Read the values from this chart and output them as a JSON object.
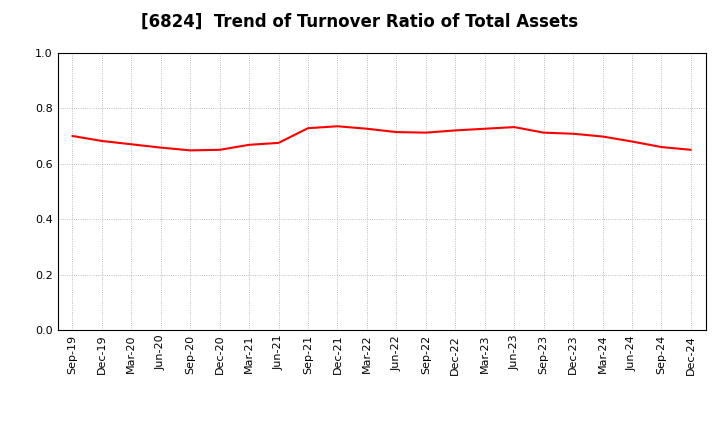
{
  "title": "[6824]  Trend of Turnover Ratio of Total Assets",
  "x_labels": [
    "Sep-19",
    "Dec-19",
    "Mar-20",
    "Jun-20",
    "Sep-20",
    "Dec-20",
    "Mar-21",
    "Jun-21",
    "Sep-21",
    "Dec-21",
    "Mar-22",
    "Jun-22",
    "Sep-22",
    "Dec-22",
    "Mar-23",
    "Jun-23",
    "Sep-23",
    "Dec-23",
    "Mar-24",
    "Jun-24",
    "Sep-24",
    "Dec-24"
  ],
  "values": [
    0.7,
    0.682,
    0.67,
    0.658,
    0.648,
    0.65,
    0.668,
    0.675,
    0.728,
    0.735,
    0.726,
    0.714,
    0.712,
    0.72,
    0.726,
    0.732,
    0.712,
    0.708,
    0.698,
    0.68,
    0.66,
    0.65
  ],
  "line_color": "#FF0000",
  "line_width": 1.5,
  "ylim": [
    0.0,
    1.0
  ],
  "yticks": [
    0.0,
    0.2,
    0.4,
    0.6,
    0.8,
    1.0
  ],
  "title_fontsize": 12,
  "background_color": "#ffffff",
  "grid_color": "#aaaaaa",
  "tick_fontsize": 8
}
